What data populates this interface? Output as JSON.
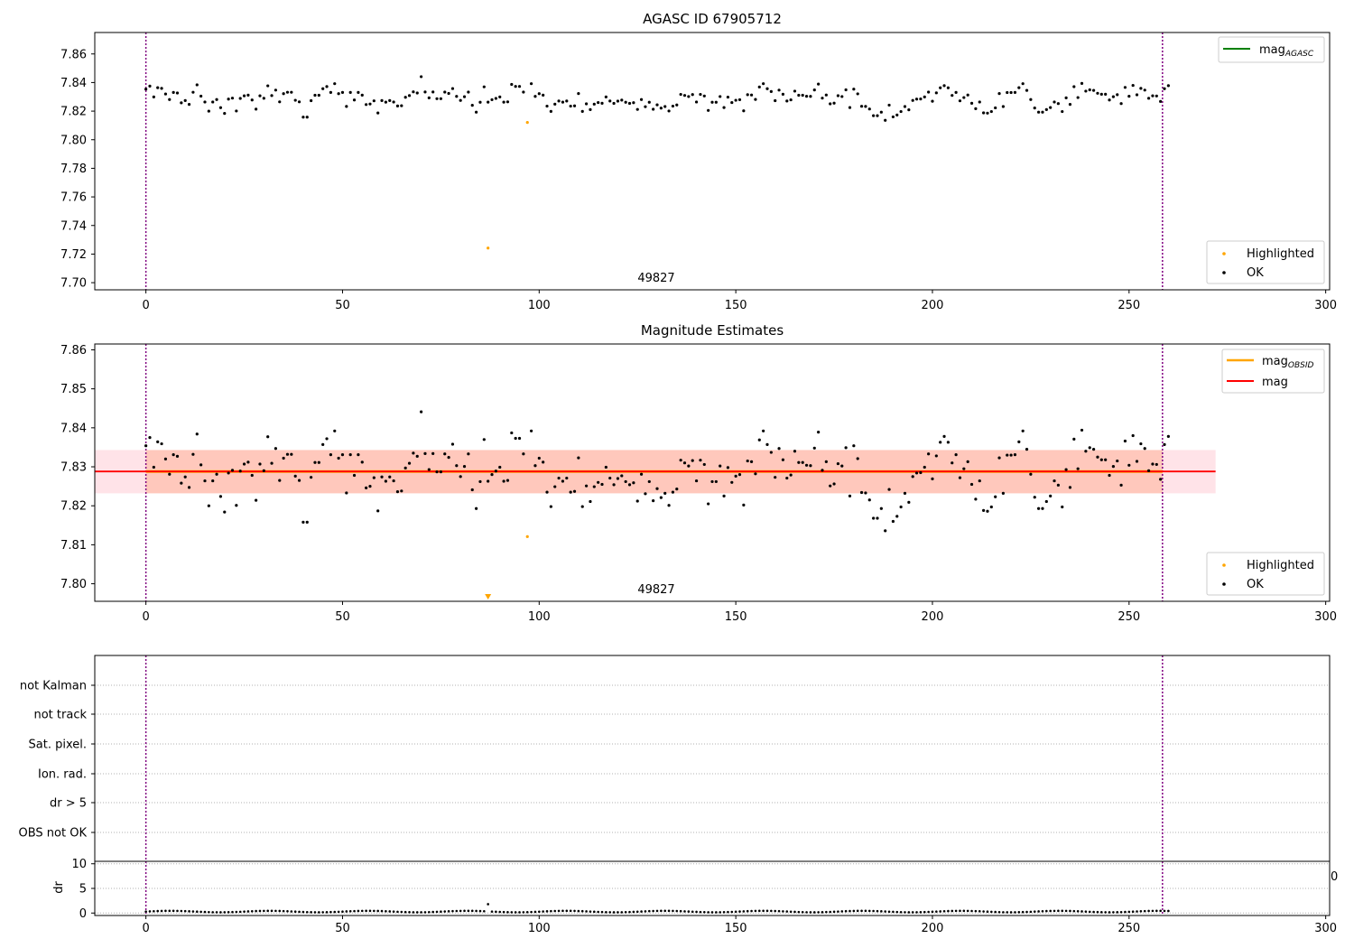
{
  "colors": {
    "ok_points": "#000000",
    "highlighted_points": "#ffa500",
    "mag_agasc_line": "#008000",
    "mag_obsid_line": "#ffa500",
    "mag_line": "#ff0000",
    "obsid_boundary": "#800080",
    "band_mag": "#ffc0cb",
    "band_obsid": "#ffa07a",
    "grid": "#b0b0b0"
  },
  "chart_data": [
    {
      "type": "scatter",
      "title": "AGASC ID 67905712",
      "xlim": [
        -13,
        301
      ],
      "ylim": [
        7.695,
        7.875
      ],
      "xticks": [
        0,
        50,
        100,
        150,
        200,
        250,
        300
      ],
      "yticks": [
        "7.86",
        "7.84",
        "7.82",
        "7.80",
        "7.78",
        "7.76",
        "7.74",
        "7.72",
        "7.70"
      ],
      "obsid_label": "49827",
      "obsid_boundaries": [
        0,
        258.5
      ],
      "legend_lines": [
        {
          "label": "mag",
          "subscript": "AGASC",
          "color": "#008000"
        }
      ],
      "legend_points": [
        {
          "label": "Highlighted",
          "color": "#ffa500"
        },
        {
          "label": "OK",
          "color": "#000000"
        }
      ],
      "legend_lines_position": "upper right",
      "legend_points_position": "lower right",
      "mag_agasc": null,
      "series": [
        {
          "name": "OK",
          "x_start": 0,
          "x_step": 1,
          "values": [
            7.8354,
            7.8375,
            7.8299,
            7.8364,
            7.8359,
            7.832,
            7.8281,
            7.8331,
            7.8327,
            7.8258,
            7.8274,
            7.8247,
            7.8332,
            7.8384,
            7.8305,
            7.8264,
            7.82,
            7.8264,
            7.8281,
            7.8224,
            7.8184,
            7.8284,
            7.8291,
            7.8201,
            7.8289,
            7.8307,
            7.8312,
            7.8278,
            7.8214,
            7.8307,
            7.829,
            7.8377,
            7.8309,
            7.8347,
            7.8265,
            7.8322,
            7.8332,
            7.8332,
            7.8276,
            7.8265,
            7.8158,
            7.8158,
            7.8273,
            7.8311,
            7.8311,
            7.8357,
            7.8372,
            7.8331,
            7.8392,
            7.8322,
            7.8331,
            7.8233,
            7.8331,
            7.8278,
            7.8331,
            7.8312,
            7.8246,
            7.825,
            7.8272,
            7.8187,
            7.8274,
            7.8263,
            7.8274,
            7.8264,
            7.8236,
            7.8238,
            7.8297,
            7.8309,
            7.8335,
            7.8327,
            7.8441,
            7.8334,
            7.8293,
            7.8334,
            7.8287,
            7.8287,
            7.8333,
            7.8324,
            7.8358,
            7.8303,
            7.8275,
            7.8301,
            7.8333,
            7.8241,
            7.8193,
            7.8262,
            7.837,
            7.8263,
            7.828,
            7.8289,
            7.8299,
            7.8263,
            7.8265,
            7.8387,
            7.8373,
            7.8373,
            7.8333,
            null,
            7.8392,
            7.8303,
            7.8322,
            7.8312,
            7.8235,
            7.8198,
            7.8249,
            7.8271,
            7.8263,
            7.8271,
            7.8235,
            7.8237,
            7.8323,
            7.8198,
            7.8251,
            7.8211,
            7.8249,
            7.826,
            7.8255,
            7.8299,
            7.8271,
            7.8254,
            7.827,
            7.8277,
            7.8262,
            7.8254,
            7.8259,
            7.8212,
            7.8281,
            7.8231,
            7.8262,
            7.8213,
            7.8244,
            7.8221,
            7.8232,
            7.8201,
            7.8235,
            7.8243,
            7.8317,
            7.831,
            7.8302,
            7.8316,
            7.8264,
            7.8317,
            7.8306,
            7.8205,
            7.8262,
            7.8262,
            7.8302,
            7.8225,
            7.8298,
            7.826,
            7.8276,
            7.828,
            7.8202,
            7.8315,
            7.8313,
            7.8282,
            7.8369,
            7.8392,
            7.8357,
            7.8337,
            7.8273,
            7.8347,
            7.8318,
            7.8271,
            7.8279,
            7.834,
            7.8311,
            7.8311,
            7.8304,
            7.8303,
            7.8348,
            7.8389,
            7.8291,
            7.8313,
            7.8251,
            7.8256,
            7.8308,
            7.8302,
            7.8349,
            7.8225,
            7.8354,
            7.8321,
            7.8234,
            7.8233,
            7.8215,
            7.8168,
            7.8168,
            7.8193,
            7.8136,
            7.8242,
            7.816,
            7.8173,
            7.8197,
            7.8232,
            7.8209,
            7.8275,
            7.8284,
            7.8285,
            7.8299,
            7.8333,
            7.8269,
            7.8328,
            7.8363,
            7.8378,
            7.8363,
            7.831,
            7.8331,
            7.8272,
            7.8295,
            7.8313,
            7.8255,
            7.8217,
            7.8264,
            7.8188,
            7.8186,
            7.8197,
            7.8223,
            7.8323,
            7.8232,
            7.833,
            7.833,
            7.8331,
            7.8364,
            7.8392,
            7.8345,
            7.8281,
            7.8222,
            7.8193,
            7.8193,
            7.8211,
            7.8225,
            7.8264,
            7.8253,
            7.8197,
            7.8293,
            7.8247,
            7.8371,
            7.8295,
            7.8394,
            7.834,
            7.8349,
            7.8345,
            7.8325,
            7.8318,
            7.8318,
            7.8278,
            7.8301,
            7.8315,
            7.8253,
            7.8366,
            7.8304,
            7.838,
            7.8314,
            7.8359,
            7.8347,
            7.829,
            7.8307,
            7.8306,
            7.8268,
            7.8357,
            7.8378
          ]
        },
        {
          "name": "Highlighted",
          "x": [
            87,
            97
          ],
          "values": [
            7.7242,
            7.8121
          ]
        }
      ]
    },
    {
      "type": "scatter",
      "title": "Magnitude Estimates",
      "xlim": [
        -13,
        301
      ],
      "ylim": [
        7.7955,
        7.8615
      ],
      "xticks": [
        0,
        50,
        100,
        150,
        200,
        250,
        300
      ],
      "yticks": [
        "7.86",
        "7.85",
        "7.84",
        "7.83",
        "7.82",
        "7.81",
        "7.80"
      ],
      "obsid_label": "49827",
      "obsid_boundaries": [
        0,
        258.5
      ],
      "legend_lines": [
        {
          "label": "mag",
          "subscript": "OBSID",
          "color": "#ffa500"
        },
        {
          "label": "mag",
          "subscript": "",
          "color": "#ff0000"
        }
      ],
      "legend_points": [
        {
          "label": "Highlighted",
          "color": "#ffa500"
        },
        {
          "label": "OK",
          "color": "#000000"
        }
      ],
      "legend_lines_position": "upper right",
      "legend_points_position": "lower right",
      "mag": 7.8288,
      "mag_band": [
        7.8232,
        7.8343
      ],
      "mag_band_x": [
        -13,
        272
      ],
      "mag_obsid": 7.8288,
      "mag_obsid_band": [
        7.8232,
        7.8343
      ],
      "mag_obsid_band_x": [
        0,
        258.5
      ],
      "series_ref": "same OK series as panel 1",
      "highlighted": {
        "x": [
          97
        ],
        "values": [
          7.8121
        ]
      },
      "off_scale_marker": {
        "x": 87,
        "shape": "triangle-down",
        "color": "#ffa500"
      }
    },
    {
      "type": "scatter",
      "title": "",
      "xlim": [
        -13,
        301
      ],
      "flag_categories": [
        "not Kalman",
        "not track",
        "Sat. pixel.",
        "Ion. rad.",
        "dr > 5",
        "OBS not OK"
      ],
      "obsid_boundaries": [
        0,
        258.5
      ],
      "flagged_points": []
    },
    {
      "type": "scatter",
      "ylabel": "dr",
      "xlim": [
        -13,
        301
      ],
      "ylim": [
        -0.5,
        10.5
      ],
      "xticks": [
        0,
        50,
        100,
        150,
        200,
        250,
        300
      ],
      "yticks": [
        "10",
        "5",
        "0"
      ],
      "clipped_label": "0",
      "obsid_boundaries": [
        0,
        258.5
      ],
      "dr_typical": 0.3,
      "dr_outlier": {
        "x": 87,
        "value": 1.8
      }
    }
  ]
}
